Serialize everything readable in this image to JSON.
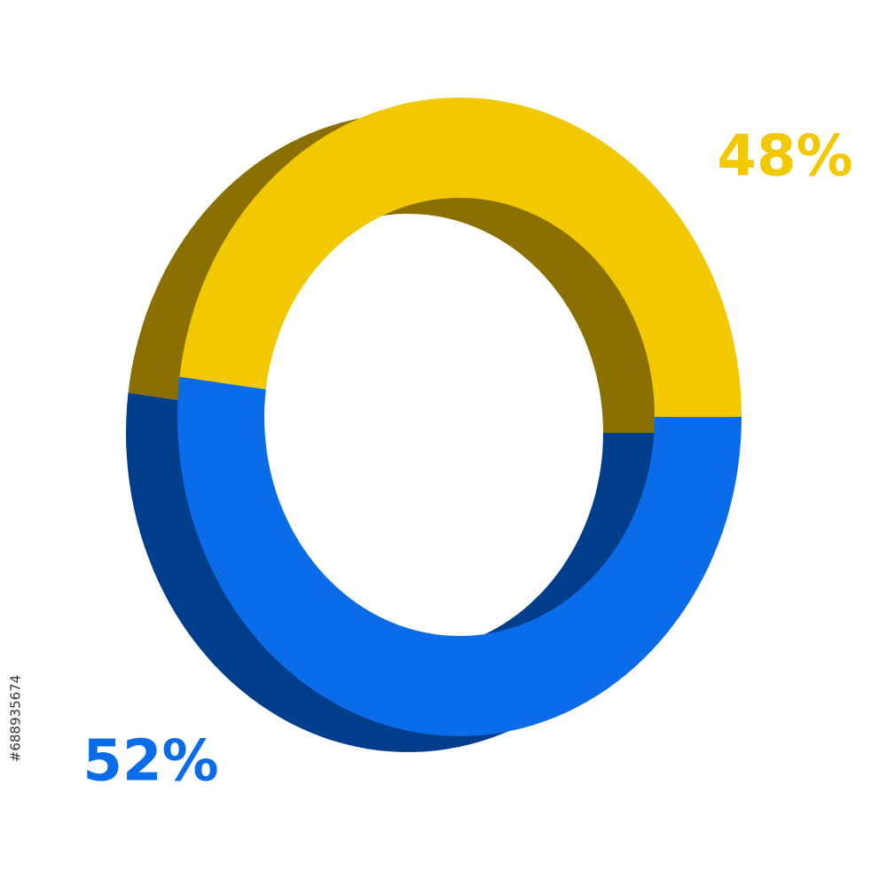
{
  "chart_data": {
    "type": "donut3d",
    "categories": [
      null,
      null
    ],
    "values": [
      48,
      52
    ],
    "value_labels": [
      "48%",
      "52%"
    ],
    "colors": [
      "#f2c800",
      "#0a6ce8"
    ],
    "shade_colors": [
      "#8a7000",
      "#003d8a"
    ]
  },
  "side_text": "#688935674"
}
